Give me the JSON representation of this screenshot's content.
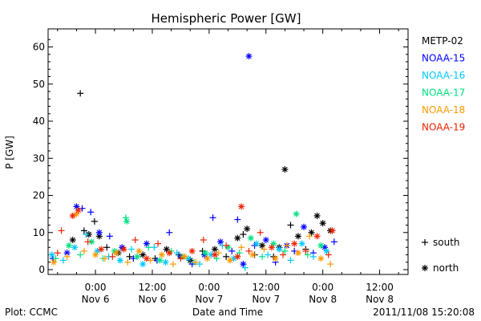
{
  "chart_data": {
    "type": "scatter",
    "title": "Hemispheric Power [GW]",
    "ylabel": "P [GW]",
    "xlabel": "Date and Time",
    "ylim": [
      0,
      64
    ],
    "yticks": [
      0,
      10,
      20,
      30,
      40,
      50,
      60
    ],
    "xlim_hours": [
      -5,
      33
    ],
    "xticks": [
      {
        "h": 0,
        "line1": "0:00",
        "line2": "Nov 6"
      },
      {
        "h": 6,
        "line1": "12:00",
        "line2": "Nov 6"
      },
      {
        "h": 12,
        "line1": "0:00",
        "line2": "Nov 7"
      },
      {
        "h": 18,
        "line1": "12:00",
        "line2": "Nov 7"
      },
      {
        "h": 24,
        "line1": "0:00",
        "line2": "Nov 8"
      },
      {
        "h": 30,
        "line1": "12:00",
        "line2": "Nov 8"
      }
    ],
    "series": [
      {
        "name": "METP-02",
        "color": "#000000",
        "points": [
          [
            -1.6,
            47.5,
            "s"
          ],
          [
            -2.4,
            8.0,
            "n"
          ],
          [
            -1.2,
            10.5,
            "s"
          ],
          [
            -0.7,
            9.5,
            "n"
          ],
          [
            -0.1,
            13.0,
            "s"
          ],
          [
            0.4,
            9.0,
            "n"
          ],
          [
            1.2,
            6.0,
            "s"
          ],
          [
            2.4,
            4.5,
            "n"
          ],
          [
            3.6,
            3.5,
            "s"
          ],
          [
            5.0,
            4.0,
            "n"
          ],
          [
            6.3,
            3.0,
            "s"
          ],
          [
            7.5,
            5.5,
            "n"
          ],
          [
            8.8,
            4.0,
            "s"
          ],
          [
            10.0,
            2.5,
            "n"
          ],
          [
            11.3,
            5.0,
            "s"
          ],
          [
            12.6,
            5.5,
            "n"
          ],
          [
            13.8,
            3.5,
            "s"
          ],
          [
            15.0,
            8.5,
            "n"
          ],
          [
            15.6,
            9.5,
            "s"
          ],
          [
            16.0,
            11.0,
            "n"
          ],
          [
            16.8,
            4.0,
            "s"
          ],
          [
            17.6,
            6.5,
            "n"
          ],
          [
            18.8,
            3.5,
            "s"
          ],
          [
            19.4,
            6.0,
            "n"
          ],
          [
            20.0,
            27.0,
            "n"
          ],
          [
            20.6,
            12.0,
            "s"
          ],
          [
            21.4,
            9.0,
            "n"
          ],
          [
            22.2,
            5.5,
            "s"
          ],
          [
            22.8,
            10.0,
            "n"
          ],
          [
            23.4,
            14.5,
            "n"
          ],
          [
            24.0,
            12.5,
            "n"
          ],
          [
            24.8,
            10.5,
            "n"
          ],
          [
            25.0,
            10.5,
            "s"
          ]
        ]
      },
      {
        "name": "NOAA-15",
        "color": "#0000ff",
        "points": [
          [
            -2.0,
            17.0,
            "n"
          ],
          [
            -1.4,
            16.5,
            "s"
          ],
          [
            -4.5,
            3.0,
            "s"
          ],
          [
            -3.0,
            4.5,
            "n"
          ],
          [
            -0.5,
            15.5,
            "s"
          ],
          [
            0.4,
            10.0,
            "n"
          ],
          [
            1.5,
            9.0,
            "s"
          ],
          [
            2.8,
            6.0,
            "n"
          ],
          [
            4.0,
            3.0,
            "s"
          ],
          [
            5.4,
            7.0,
            "n"
          ],
          [
            6.5,
            2.5,
            "s"
          ],
          [
            7.8,
            10.0,
            "s"
          ],
          [
            9.0,
            3.5,
            "n"
          ],
          [
            10.2,
            1.5,
            "s"
          ],
          [
            11.5,
            4.0,
            "n"
          ],
          [
            12.4,
            14.0,
            "s"
          ],
          [
            13.2,
            7.5,
            "n"
          ],
          [
            14.4,
            5.0,
            "s"
          ],
          [
            15.0,
            13.5,
            "s"
          ],
          [
            15.6,
            1.5,
            "n"
          ],
          [
            16.2,
            57.5,
            "n"
          ],
          [
            16.8,
            6.5,
            "s"
          ],
          [
            18.0,
            8.0,
            "n"
          ],
          [
            19.0,
            2.0,
            "s"
          ],
          [
            20.2,
            6.5,
            "n"
          ],
          [
            21.0,
            5.0,
            "s"
          ],
          [
            22.0,
            11.5,
            "n"
          ],
          [
            23.0,
            4.5,
            "s"
          ],
          [
            24.2,
            6.0,
            "n"
          ],
          [
            25.2,
            7.5,
            "s"
          ]
        ]
      },
      {
        "name": "NOAA-16",
        "color": "#00c8ff",
        "points": [
          [
            -4.6,
            4.0,
            "n"
          ],
          [
            -3.4,
            2.5,
            "s"
          ],
          [
            -2.2,
            6.0,
            "n"
          ],
          [
            -1.0,
            9.5,
            "s"
          ],
          [
            0.2,
            5.0,
            "n"
          ],
          [
            1.4,
            3.5,
            "s"
          ],
          [
            2.6,
            2.5,
            "n"
          ],
          [
            3.8,
            5.5,
            "s"
          ],
          [
            5.0,
            1.5,
            "n"
          ],
          [
            6.2,
            6.0,
            "s"
          ],
          [
            7.4,
            2.0,
            "n"
          ],
          [
            8.6,
            4.5,
            "s"
          ],
          [
            9.8,
            3.0,
            "n"
          ],
          [
            11.0,
            1.5,
            "s"
          ],
          [
            12.2,
            4.0,
            "n"
          ],
          [
            13.4,
            6.5,
            "s"
          ],
          [
            14.6,
            3.0,
            "n"
          ],
          [
            15.8,
            0.5,
            "s"
          ],
          [
            17.0,
            7.0,
            "n"
          ],
          [
            18.2,
            4.0,
            "s"
          ],
          [
            19.4,
            5.5,
            "n"
          ],
          [
            20.6,
            2.5,
            "s"
          ],
          [
            21.8,
            7.0,
            "n"
          ],
          [
            23.0,
            3.5,
            "s"
          ],
          [
            24.4,
            5.0,
            "n"
          ]
        ]
      },
      {
        "name": "NOAA-17",
        "color": "#00e080",
        "points": [
          [
            -4.2,
            3.0,
            "s"
          ],
          [
            -2.8,
            6.5,
            "n"
          ],
          [
            -1.6,
            4.0,
            "s"
          ],
          [
            -0.4,
            7.5,
            "n"
          ],
          [
            0.8,
            3.0,
            "s"
          ],
          [
            2.0,
            5.0,
            "n"
          ],
          [
            3.2,
            14.0,
            "s"
          ],
          [
            3.3,
            13.0,
            "n"
          ],
          [
            4.4,
            3.5,
            "n"
          ],
          [
            5.6,
            6.0,
            "s"
          ],
          [
            6.8,
            2.5,
            "n"
          ],
          [
            8.0,
            5.0,
            "s"
          ],
          [
            9.2,
            3.5,
            "n"
          ],
          [
            10.4,
            2.0,
            "s"
          ],
          [
            11.6,
            4.5,
            "n"
          ],
          [
            12.8,
            3.0,
            "s"
          ],
          [
            14.0,
            6.0,
            "n"
          ],
          [
            15.2,
            4.5,
            "s"
          ],
          [
            16.4,
            8.5,
            "n"
          ],
          [
            17.6,
            3.5,
            "s"
          ],
          [
            18.8,
            7.0,
            "n"
          ],
          [
            20.0,
            5.0,
            "s"
          ],
          [
            21.2,
            15.0,
            "n"
          ],
          [
            22.4,
            4.0,
            "s"
          ],
          [
            23.8,
            6.5,
            "n"
          ]
        ]
      },
      {
        "name": "NOAA-18",
        "color": "#ff9900",
        "points": [
          [
            -4.4,
            2.0,
            "n"
          ],
          [
            -3.0,
            3.5,
            "s"
          ],
          [
            -2.0,
            15.0,
            "n"
          ],
          [
            -1.2,
            5.0,
            "s"
          ],
          [
            0.0,
            4.0,
            "n"
          ],
          [
            1.0,
            3.0,
            "s"
          ],
          [
            2.2,
            4.5,
            "n"
          ],
          [
            3.4,
            2.0,
            "s"
          ],
          [
            4.6,
            5.0,
            "n"
          ],
          [
            5.8,
            2.5,
            "s"
          ],
          [
            7.0,
            4.0,
            "n"
          ],
          [
            8.2,
            1.5,
            "s"
          ],
          [
            9.4,
            3.5,
            "n"
          ],
          [
            10.6,
            2.0,
            "s"
          ],
          [
            11.8,
            3.0,
            "n"
          ],
          [
            13.0,
            4.5,
            "s"
          ],
          [
            14.2,
            2.5,
            "n"
          ],
          [
            15.4,
            6.0,
            "s"
          ],
          [
            16.6,
            4.0,
            "n"
          ],
          [
            17.8,
            5.5,
            "s"
          ],
          [
            19.0,
            3.0,
            "n"
          ],
          [
            20.2,
            6.5,
            "s"
          ],
          [
            21.4,
            4.5,
            "n"
          ],
          [
            22.6,
            9.0,
            "s"
          ],
          [
            23.8,
            3.0,
            "n"
          ],
          [
            24.8,
            1.5,
            "s"
          ]
        ]
      },
      {
        "name": "NOAA-19",
        "color": "#ee2200",
        "points": [
          [
            -4.0,
            4.5,
            "s"
          ],
          [
            -3.6,
            10.5,
            "s"
          ],
          [
            -2.4,
            14.5,
            "n"
          ],
          [
            -1.8,
            16.0,
            "n"
          ],
          [
            -0.8,
            7.5,
            "s"
          ],
          [
            0.6,
            5.5,
            "n"
          ],
          [
            1.8,
            3.5,
            "s"
          ],
          [
            3.0,
            5.5,
            "n"
          ],
          [
            4.2,
            8.0,
            "s"
          ],
          [
            5.4,
            3.0,
            "n"
          ],
          [
            6.6,
            7.0,
            "s"
          ],
          [
            7.8,
            4.5,
            "n"
          ],
          [
            9.0,
            3.0,
            "s"
          ],
          [
            10.2,
            5.0,
            "n"
          ],
          [
            11.4,
            8.0,
            "s"
          ],
          [
            12.6,
            4.0,
            "n"
          ],
          [
            13.8,
            6.5,
            "s"
          ],
          [
            15.0,
            3.5,
            "n"
          ],
          [
            15.4,
            17.0,
            "n"
          ],
          [
            16.2,
            5.0,
            "s"
          ],
          [
            17.4,
            10.0,
            "s"
          ],
          [
            18.6,
            6.0,
            "n"
          ],
          [
            19.8,
            4.0,
            "s"
          ],
          [
            21.0,
            7.0,
            "n"
          ],
          [
            22.2,
            5.0,
            "s"
          ],
          [
            23.4,
            9.0,
            "n"
          ],
          [
            24.6,
            4.0,
            "s"
          ],
          [
            25.0,
            10.5,
            "n"
          ]
        ]
      }
    ],
    "legend": [
      {
        "name": "METP-02",
        "color": "#000000"
      },
      {
        "name": "NOAA-15",
        "color": "#0000ff"
      },
      {
        "name": "NOAA-16",
        "color": "#00c8ff"
      },
      {
        "name": "NOAA-17",
        "color": "#00e080"
      },
      {
        "name": "NOAA-18",
        "color": "#ff9900"
      },
      {
        "name": "NOAA-19",
        "color": "#ee2200"
      }
    ],
    "legend_position": "right",
    "markers": [
      {
        "symbol": "+",
        "label": "south"
      },
      {
        "symbol": "*",
        "label": "north"
      }
    ]
  },
  "footer": {
    "left": "Plot: CCMC",
    "right": "2011/11/08 15:20:08"
  }
}
